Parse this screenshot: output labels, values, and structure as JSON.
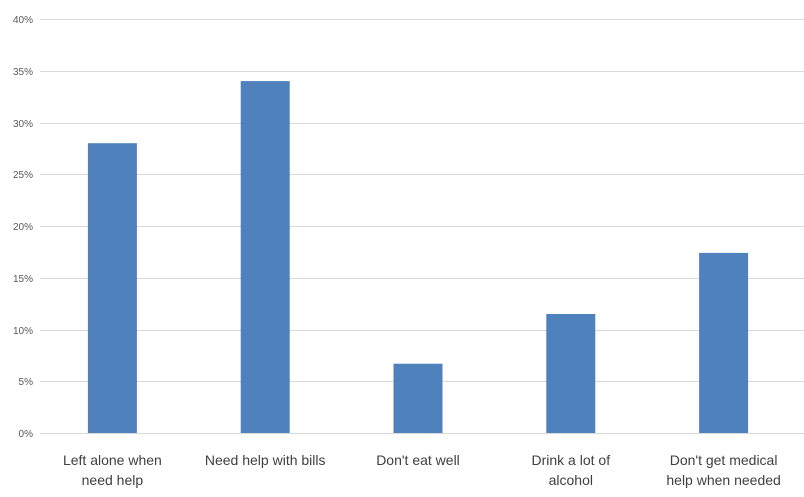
{
  "chart_data": {
    "type": "bar",
    "title": "",
    "xlabel": "",
    "ylabel": "",
    "categories": [
      [
        "Left alone when",
        "need help"
      ],
      [
        "Need help with bills"
      ],
      [
        "Don't eat well"
      ],
      [
        "Drink a lot of",
        "alcohol"
      ],
      [
        "Don't get medical",
        "help when needed"
      ]
    ],
    "values": [
      28,
      34,
      6.7,
      11.5,
      17.4
    ],
    "ylim": [
      0,
      40
    ],
    "yticks": [
      0,
      5,
      10,
      15,
      20,
      25,
      30,
      35,
      40
    ],
    "ytick_labels": [
      "0%",
      "5%",
      "10%",
      "15%",
      "20%",
      "25%",
      "30%",
      "35%",
      "40%"
    ],
    "grid": true,
    "legend": "none",
    "colors": {
      "bar": "#4F81BD",
      "grid": "#D9D9D9"
    }
  }
}
